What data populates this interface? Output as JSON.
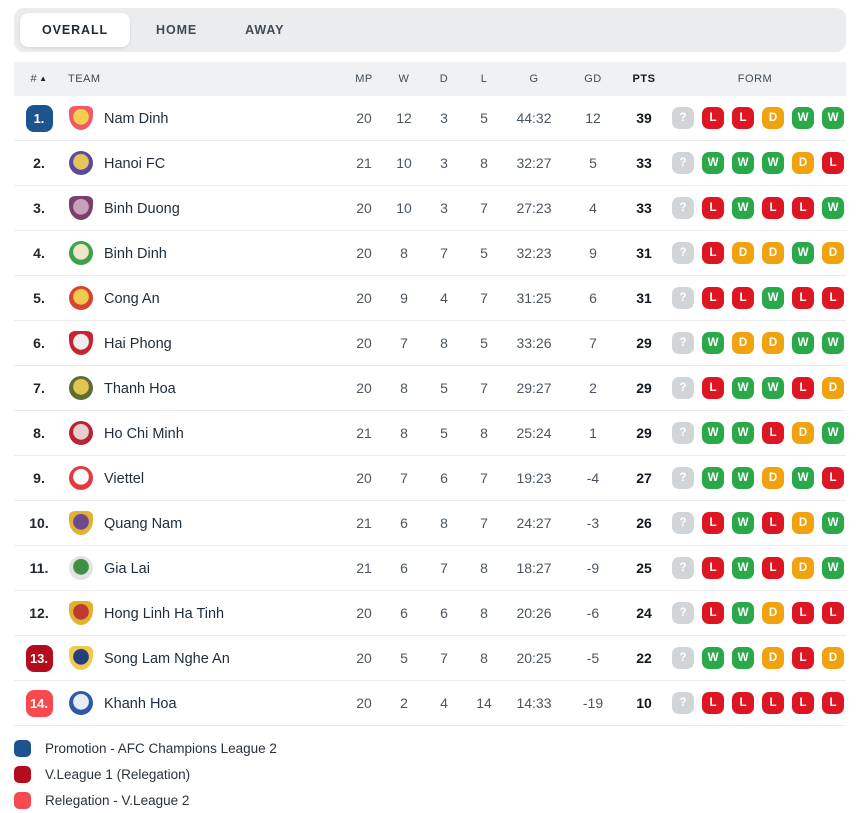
{
  "tabs": [
    {
      "label": "OVERALL",
      "active": true
    },
    {
      "label": "HOME",
      "active": false
    },
    {
      "label": "AWAY",
      "active": false
    }
  ],
  "table": {
    "headers": {
      "rank": "#",
      "sort_icon": "▲",
      "team": "TEAM",
      "mp": "MP",
      "w": "W",
      "d": "D",
      "l": "L",
      "g": "G",
      "gd": "GD",
      "pts": "PTS",
      "form": "FORM"
    },
    "rows": [
      {
        "rank": "1.",
        "badge": "promotion",
        "team": "Nam Dinh",
        "mp": "20",
        "w": "12",
        "d": "3",
        "l": "5",
        "g": "44:32",
        "gd": "12",
        "pts": "39",
        "form": [
          "?",
          "L",
          "L",
          "D",
          "W",
          "W"
        ],
        "crest": {
          "shape": "shield",
          "inner": "#f6cf4e",
          "outer": "#ef5a66"
        }
      },
      {
        "rank": "2.",
        "badge": null,
        "team": "Hanoi FC",
        "mp": "21",
        "w": "10",
        "d": "3",
        "l": "8",
        "g": "32:27",
        "gd": "5",
        "pts": "33",
        "form": [
          "?",
          "W",
          "W",
          "W",
          "D",
          "L"
        ],
        "crest": {
          "shape": "circle",
          "inner": "#e8c25a",
          "outer": "#584a9e"
        }
      },
      {
        "rank": "3.",
        "badge": null,
        "team": "Binh Duong",
        "mp": "20",
        "w": "10",
        "d": "3",
        "l": "7",
        "g": "27:23",
        "gd": "4",
        "pts": "33",
        "form": [
          "?",
          "L",
          "W",
          "L",
          "L",
          "W"
        ],
        "crest": {
          "shape": "shield",
          "inner": "#c9a0bb",
          "outer": "#7c3f68"
        }
      },
      {
        "rank": "4.",
        "badge": null,
        "team": "Binh Dinh",
        "mp": "20",
        "w": "8",
        "d": "7",
        "l": "5",
        "g": "32:23",
        "gd": "9",
        "pts": "31",
        "form": [
          "?",
          "L",
          "D",
          "D",
          "W",
          "D"
        ],
        "crest": {
          "shape": "circle",
          "inner": "#f0e6c8",
          "outer": "#3ba24b"
        }
      },
      {
        "rank": "5.",
        "badge": null,
        "team": "Cong An",
        "mp": "20",
        "w": "9",
        "d": "4",
        "l": "7",
        "g": "31:25",
        "gd": "6",
        "pts": "31",
        "form": [
          "?",
          "L",
          "L",
          "W",
          "L",
          "L"
        ],
        "crest": {
          "shape": "circle",
          "inner": "#f3c84e",
          "outer": "#d8432f"
        }
      },
      {
        "rank": "6.",
        "badge": null,
        "team": "Hai Phong",
        "mp": "20",
        "w": "7",
        "d": "8",
        "l": "5",
        "g": "33:26",
        "gd": "7",
        "pts": "29",
        "form": [
          "?",
          "W",
          "D",
          "D",
          "W",
          "W"
        ],
        "crest": {
          "shape": "shield",
          "inner": "#eeeeee",
          "outer": "#c6252f"
        }
      },
      {
        "rank": "7.",
        "badge": null,
        "team": "Thanh Hoa",
        "mp": "20",
        "w": "8",
        "d": "5",
        "l": "7",
        "g": "29:27",
        "gd": "2",
        "pts": "29",
        "form": [
          "?",
          "L",
          "W",
          "W",
          "L",
          "D"
        ],
        "crest": {
          "shape": "circle",
          "inner": "#e3c44f",
          "outer": "#5c6e33"
        }
      },
      {
        "rank": "8.",
        "badge": null,
        "team": "Ho Chi Minh",
        "mp": "21",
        "w": "8",
        "d": "5",
        "l": "8",
        "g": "25:24",
        "gd": "1",
        "pts": "29",
        "form": [
          "?",
          "W",
          "W",
          "L",
          "D",
          "W"
        ],
        "crest": {
          "shape": "circle",
          "inner": "#e9cfd0",
          "outer": "#b72433"
        }
      },
      {
        "rank": "9.",
        "badge": null,
        "team": "Viettel",
        "mp": "20",
        "w": "7",
        "d": "6",
        "l": "7",
        "g": "19:23",
        "gd": "-4",
        "pts": "27",
        "form": [
          "?",
          "W",
          "W",
          "D",
          "W",
          "L"
        ],
        "crest": {
          "shape": "circle",
          "inner": "#ffffff",
          "outer": "#e6393e"
        }
      },
      {
        "rank": "10.",
        "badge": null,
        "team": "Quang Nam",
        "mp": "21",
        "w": "6",
        "d": "8",
        "l": "7",
        "g": "24:27",
        "gd": "-3",
        "pts": "26",
        "form": [
          "?",
          "L",
          "W",
          "L",
          "D",
          "W"
        ],
        "crest": {
          "shape": "shield",
          "inner": "#6d4a8f",
          "outer": "#e0b32e"
        }
      },
      {
        "rank": "11.",
        "badge": null,
        "team": "Gia Lai",
        "mp": "21",
        "w": "6",
        "d": "7",
        "l": "8",
        "g": "18:27",
        "gd": "-9",
        "pts": "25",
        "form": [
          "?",
          "L",
          "W",
          "L",
          "D",
          "W"
        ],
        "crest": {
          "shape": "circle",
          "inner": "#3f8f45",
          "outer": "#dfe5df"
        }
      },
      {
        "rank": "12.",
        "badge": null,
        "team": "Hong Linh Ha Tinh",
        "mp": "20",
        "w": "6",
        "d": "6",
        "l": "8",
        "g": "20:26",
        "gd": "-6",
        "pts": "24",
        "form": [
          "?",
          "L",
          "W",
          "D",
          "L",
          "L"
        ],
        "crest": {
          "shape": "shield",
          "inner": "#c03a30",
          "outer": "#e0b32e"
        }
      },
      {
        "rank": "13.",
        "badge": "relegation_vl1",
        "team": "Song Lam Nghe An",
        "mp": "20",
        "w": "5",
        "d": "7",
        "l": "8",
        "g": "20:25",
        "gd": "-5",
        "pts": "22",
        "form": [
          "?",
          "W",
          "W",
          "D",
          "L",
          "D"
        ],
        "crest": {
          "shape": "shield",
          "inner": "#23407c",
          "outer": "#f0c94f"
        }
      },
      {
        "rank": "14.",
        "badge": "relegation_vl2",
        "team": "Khanh Hoa",
        "mp": "20",
        "w": "2",
        "d": "4",
        "l": "14",
        "g": "14:33",
        "gd": "-19",
        "pts": "10",
        "form": [
          "?",
          "L",
          "L",
          "L",
          "L",
          "L"
        ],
        "crest": {
          "shape": "circle",
          "inner": "#e7edf5",
          "outer": "#2f58a8"
        }
      }
    ]
  },
  "colors": {
    "form": {
      "W": "#2aa84a",
      "D": "#f0a30f",
      "L": "#dc1622",
      "?": "#d2d5d8"
    },
    "rank_badges": {
      "promotion": "#1d538f",
      "relegation_vl1": "#b30d1d",
      "relegation_vl2": "#f8494f"
    }
  },
  "legend": [
    {
      "key": "promotion",
      "color": "#1d538f",
      "label": "Promotion - AFC Champions League 2"
    },
    {
      "key": "relegation_vl1",
      "color": "#b30d1d",
      "label": "V.League 1 (Relegation)"
    },
    {
      "key": "relegation_vl2",
      "color": "#f8494f",
      "label": "Relegation - V.League 2"
    }
  ]
}
